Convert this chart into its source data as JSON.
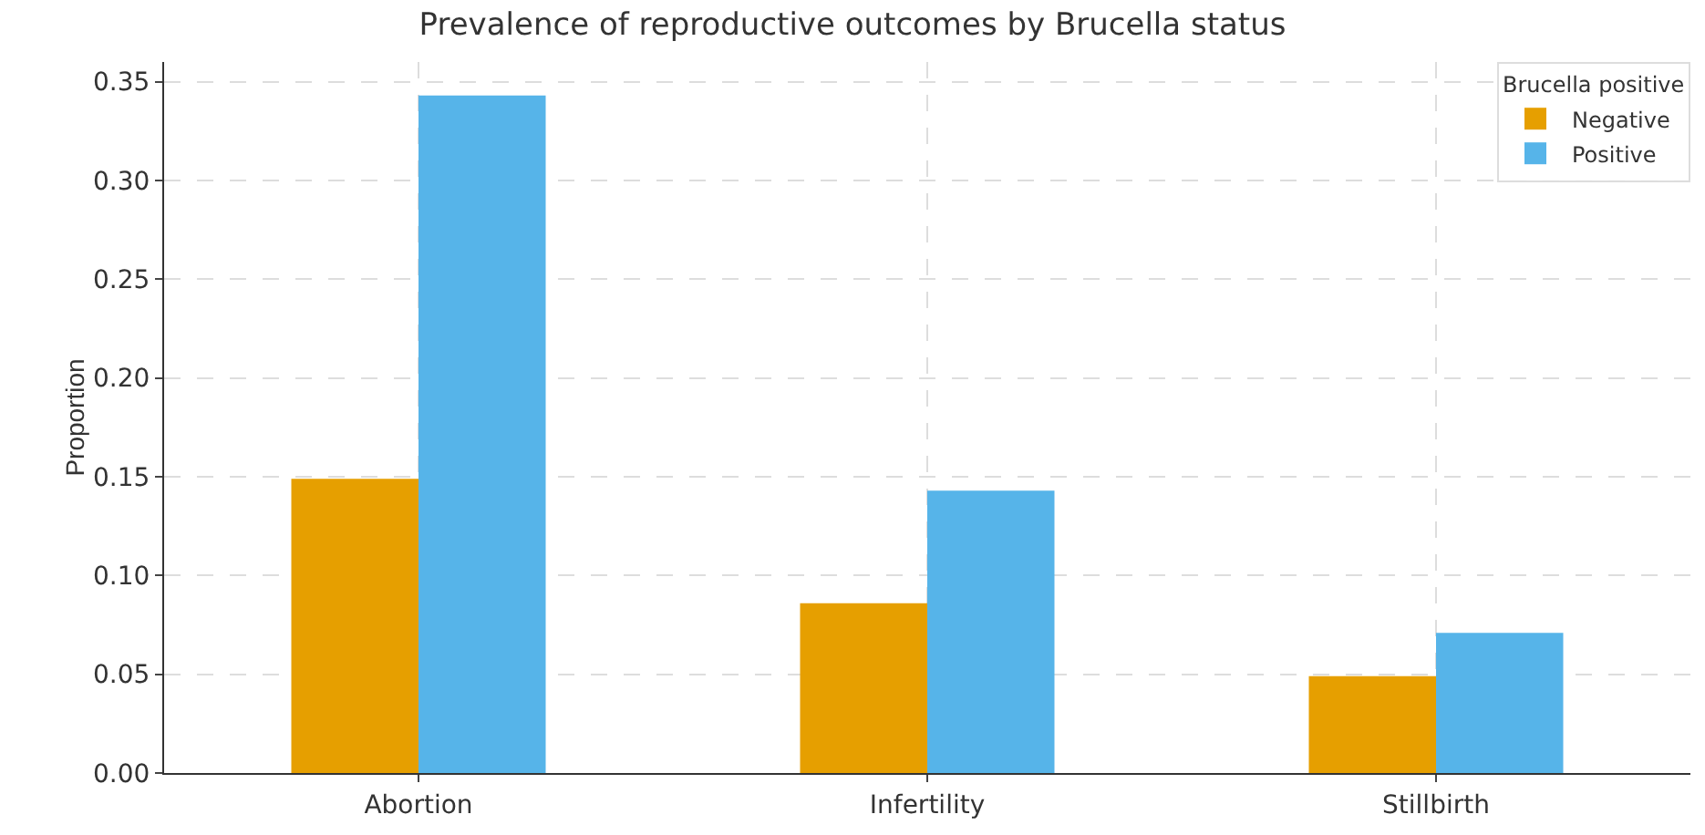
{
  "chart_data": {
    "type": "bar",
    "title": "Prevalence of reproductive outcomes by Brucella status",
    "ylabel": "Proportion",
    "legend_title": "Brucella positive",
    "categories": [
      "Abortion",
      "Infertility",
      "Stillbirth"
    ],
    "series": [
      {
        "name": "Negative",
        "color": "#e69f00",
        "values": [
          0.149,
          0.086,
          0.049
        ]
      },
      {
        "name": "Positive",
        "color": "#56b4e9",
        "values": [
          0.343,
          0.143,
          0.071
        ]
      }
    ],
    "ylim": [
      0,
      0.36
    ],
    "yticks": [
      {
        "value": 0,
        "label": "0.00"
      },
      {
        "value": 0.05,
        "label": "0.05"
      },
      {
        "value": 0.1,
        "label": "0.10"
      },
      {
        "value": 0.15,
        "label": "0.15"
      },
      {
        "value": 0.2,
        "label": "0.20"
      },
      {
        "value": 0.25,
        "label": "0.25"
      },
      {
        "value": 0.3,
        "label": "0.30"
      },
      {
        "value": 0.35,
        "label": "0.35"
      }
    ],
    "grid": true,
    "legend": "top right"
  }
}
